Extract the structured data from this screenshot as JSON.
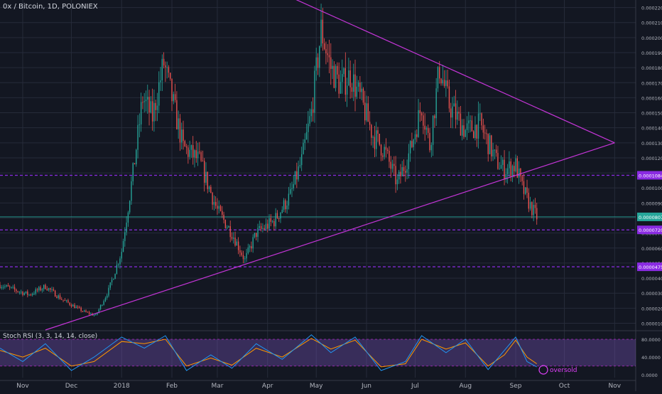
{
  "chart_title": "0x / Bitcoin, 1D, POLONIEX",
  "colors": {
    "background": "#131722",
    "grid": "#262b3a",
    "up": "#26a69a",
    "down": "#ef5350",
    "trendline": "#c535d8",
    "level": "#8a2be2",
    "current_price": "#26a69a"
  },
  "chart_data": {
    "type": "candlestick",
    "title": "0x / Bitcoin, 1D, POLONIEX",
    "x_ticks": [
      "Nov",
      "Dec",
      "2018",
      "Feb",
      "Mar",
      "Apr",
      "May",
      "Jun",
      "Jul",
      "Aug",
      "Sep",
      "Oct",
      "Nov"
    ],
    "y_ticks": [
      "0.00001000",
      "0.00002000",
      "0.00003000",
      "0.00004000",
      "0.00005000",
      "0.00006000",
      "0.00007000",
      "0.00008000",
      "0.00009000",
      "0.00010000",
      "0.00011000",
      "0.00012000",
      "0.00013000",
      "0.00014000",
      "0.00015000",
      "0.00016000",
      "0.00017000",
      "0.00018000",
      "0.00019000",
      "0.00020000",
      "0.00021000",
      "0.00022000"
    ],
    "ylim": [
      5.5e-06,
      0.000225
    ],
    "grid": true,
    "price_labels": [
      {
        "value": 0.0001084,
        "text": "0.00010840",
        "kind": "level"
      },
      {
        "value": 8.074e-05,
        "text": "0.00008074",
        "kind": "current"
      },
      {
        "value": 7.209e-05,
        "text": "0.00007209",
        "kind": "level"
      },
      {
        "value": 4.754e-05,
        "text": "0.00004754",
        "kind": "level"
      }
    ],
    "price_path": [
      {
        "date": "2017-10-18",
        "close": 3.55e-05
      },
      {
        "date": "2017-10-26",
        "close": 3.25e-05
      },
      {
        "date": "2017-11-05",
        "close": 2.9e-05
      },
      {
        "date": "2017-11-15",
        "close": 3.45e-05
      },
      {
        "date": "2017-11-25",
        "close": 2.6e-05
      },
      {
        "date": "2017-12-08",
        "close": 1.8e-05
      },
      {
        "date": "2017-12-16",
        "close": 1.5e-05
      },
      {
        "date": "2017-12-24",
        "close": 3.2e-05
      },
      {
        "date": "2018-01-01",
        "close": 5.8e-05
      },
      {
        "date": "2018-01-08",
        "close": 0.00011
      },
      {
        "date": "2018-01-14",
        "close": 0.00016
      },
      {
        "date": "2018-01-20",
        "close": 0.000147
      },
      {
        "date": "2018-01-27",
        "close": 0.000183
      },
      {
        "date": "2018-02-02",
        "close": 0.000155
      },
      {
        "date": "2018-02-08",
        "close": 0.000127
      },
      {
        "date": "2018-02-18",
        "close": 0.000118
      },
      {
        "date": "2018-03-01",
        "close": 8.5e-05
      },
      {
        "date": "2018-03-10",
        "close": 7e-05
      },
      {
        "date": "2018-03-18",
        "close": 5.2e-05
      },
      {
        "date": "2018-03-25",
        "close": 7e-05
      },
      {
        "date": "2018-04-05",
        "close": 7.8e-05
      },
      {
        "date": "2018-04-15",
        "close": 9.5e-05
      },
      {
        "date": "2018-04-22",
        "close": 0.000118
      },
      {
        "date": "2018-04-28",
        "close": 0.00015
      },
      {
        "date": "2018-05-04",
        "close": 0.000205
      },
      {
        "date": "2018-05-10",
        "close": 0.00018
      },
      {
        "date": "2018-05-16",
        "close": 0.000168
      },
      {
        "date": "2018-05-22",
        "close": 0.000175
      },
      {
        "date": "2018-05-28",
        "close": 0.00016
      },
      {
        "date": "2018-06-05",
        "close": 0.000135
      },
      {
        "date": "2018-06-12",
        "close": 0.000125
      },
      {
        "date": "2018-06-20",
        "close": 0.000103
      },
      {
        "date": "2018-06-28",
        "close": 0.000125
      },
      {
        "date": "2018-07-05",
        "close": 0.000155
      },
      {
        "date": "2018-07-10",
        "close": 0.000128
      },
      {
        "date": "2018-07-16",
        "close": 0.00018
      },
      {
        "date": "2018-07-22",
        "close": 0.000155
      },
      {
        "date": "2018-08-01",
        "close": 0.000138
      },
      {
        "date": "2018-08-10",
        "close": 0.000142
      },
      {
        "date": "2018-08-20",
        "close": 0.000118
      },
      {
        "date": "2018-08-25",
        "close": 0.000112
      },
      {
        "date": "2018-09-01",
        "close": 0.000115
      },
      {
        "date": "2018-09-05",
        "close": 0.0001
      },
      {
        "date": "2018-09-10",
        "close": 8.8e-05
      },
      {
        "date": "2018-09-14",
        "close": 8.074e-05
      }
    ],
    "trendlines": [
      {
        "name": "",
        "points": [
          {
            "date": "2018-04-17",
            "value": 0.000226
          },
          {
            "date": "2018-11-01",
            "value": 0.00013
          }
        ]
      },
      {
        "name": "",
        "points": [
          {
            "date": "2017-11-15",
            "value": 5.5e-06
          },
          {
            "date": "2018-11-01",
            "value": 0.00013
          }
        ]
      }
    ],
    "horizontal_levels": [
      0.0001084,
      7.209e-05,
      4.754e-05
    ],
    "indicator": {
      "title": "Stoch RSI (3, 3, 14, 14, close)",
      "y_ticks": [
        "80.0000",
        "40.0000",
        "0.0000"
      ],
      "ylim": [
        -6,
        96
      ],
      "band": [
        20,
        80
      ],
      "annotation": "oversold",
      "k_path": [
        {
          "date": "2017-10-18",
          "value": 60
        },
        {
          "date": "2017-11-01",
          "value": 30
        },
        {
          "date": "2017-11-15",
          "value": 70
        },
        {
          "date": "2017-12-01",
          "value": 10
        },
        {
          "date": "2017-12-15",
          "value": 40
        },
        {
          "date": "2018-01-01",
          "value": 85
        },
        {
          "date": "2018-01-15",
          "value": 60
        },
        {
          "date": "2018-01-28",
          "value": 88
        },
        {
          "date": "2018-02-10",
          "value": 10
        },
        {
          "date": "2018-02-25",
          "value": 45
        },
        {
          "date": "2018-03-10",
          "value": 15
        },
        {
          "date": "2018-03-25",
          "value": 70
        },
        {
          "date": "2018-04-10",
          "value": 35
        },
        {
          "date": "2018-04-28",
          "value": 90
        },
        {
          "date": "2018-05-10",
          "value": 50
        },
        {
          "date": "2018-05-25",
          "value": 85
        },
        {
          "date": "2018-06-10",
          "value": 10
        },
        {
          "date": "2018-06-25",
          "value": 30
        },
        {
          "date": "2018-07-05",
          "value": 88
        },
        {
          "date": "2018-07-20",
          "value": 50
        },
        {
          "date": "2018-08-01",
          "value": 80
        },
        {
          "date": "2018-08-15",
          "value": 12
        },
        {
          "date": "2018-08-25",
          "value": 55
        },
        {
          "date": "2018-09-01",
          "value": 85
        },
        {
          "date": "2018-09-08",
          "value": 30
        },
        {
          "date": "2018-09-14",
          "value": 18
        }
      ],
      "d_path": [
        {
          "date": "2017-10-18",
          "value": 55
        },
        {
          "date": "2017-11-01",
          "value": 40
        },
        {
          "date": "2017-11-15",
          "value": 60
        },
        {
          "date": "2017-12-01",
          "value": 20
        },
        {
          "date": "2017-12-15",
          "value": 30
        },
        {
          "date": "2018-01-01",
          "value": 75
        },
        {
          "date": "2018-01-15",
          "value": 70
        },
        {
          "date": "2018-01-28",
          "value": 80
        },
        {
          "date": "2018-02-10",
          "value": 20
        },
        {
          "date": "2018-02-25",
          "value": 38
        },
        {
          "date": "2018-03-10",
          "value": 22
        },
        {
          "date": "2018-03-25",
          "value": 60
        },
        {
          "date": "2018-04-10",
          "value": 40
        },
        {
          "date": "2018-04-28",
          "value": 82
        },
        {
          "date": "2018-05-10",
          "value": 58
        },
        {
          "date": "2018-05-25",
          "value": 78
        },
        {
          "date": "2018-06-10",
          "value": 18
        },
        {
          "date": "2018-06-25",
          "value": 25
        },
        {
          "date": "2018-07-05",
          "value": 80
        },
        {
          "date": "2018-07-20",
          "value": 58
        },
        {
          "date": "2018-08-01",
          "value": 72
        },
        {
          "date": "2018-08-15",
          "value": 20
        },
        {
          "date": "2018-08-25",
          "value": 45
        },
        {
          "date": "2018-09-01",
          "value": 78
        },
        {
          "date": "2018-09-08",
          "value": 40
        },
        {
          "date": "2018-09-14",
          "value": 25
        }
      ]
    }
  }
}
